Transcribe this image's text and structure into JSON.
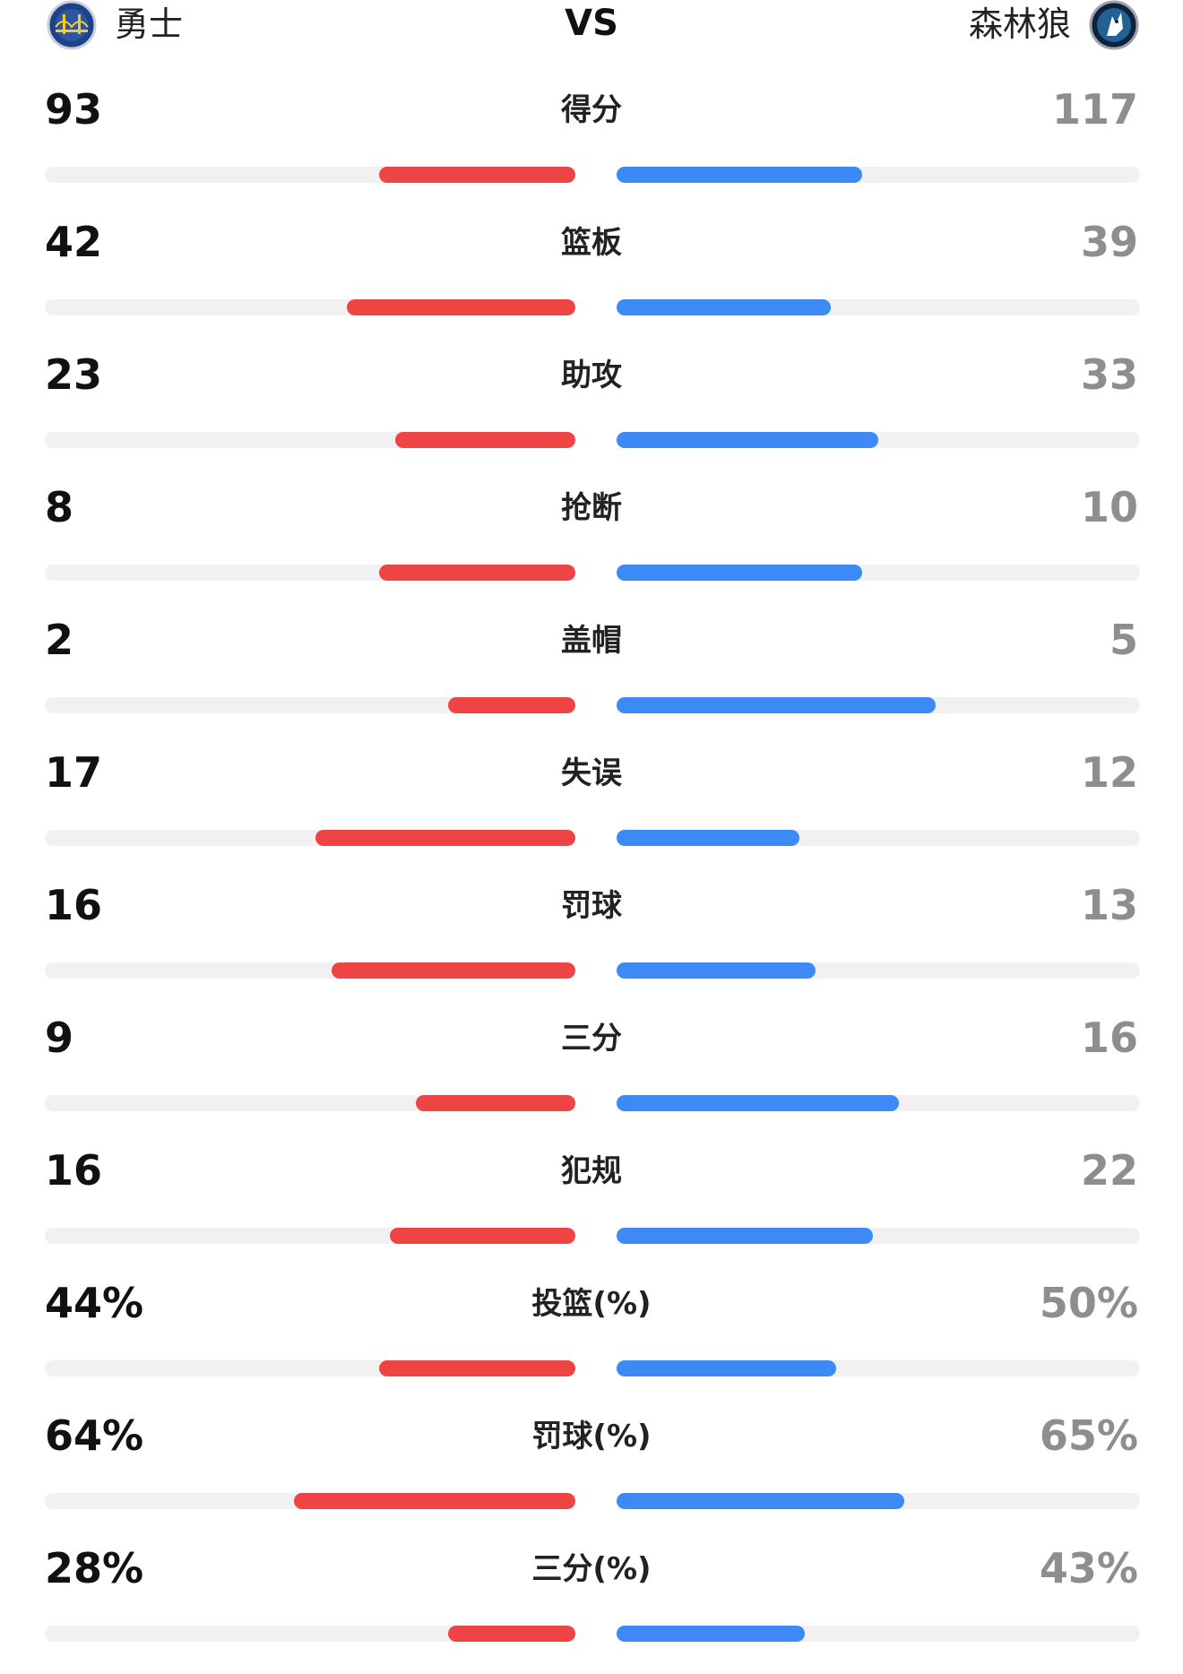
{
  "header": {
    "home_team": "勇士",
    "away_team": "森林狼",
    "vs": "VS",
    "home_logo_icon": "warriors-bridge-logo",
    "away_logo_icon": "timberwolves-logo"
  },
  "colors": {
    "home_bar": "#ef4444",
    "away_bar": "#3d8af7",
    "track": "#f1f1f1",
    "away_value_text": "#8e8e8e"
  },
  "stats": [
    {
      "label": "得分",
      "home": "93",
      "away": "117",
      "home_fill": 0.37,
      "away_fill": 0.47
    },
    {
      "label": "篮板",
      "home": "42",
      "away": "39",
      "home_fill": 0.43,
      "away_fill": 0.41
    },
    {
      "label": "助攻",
      "home": "23",
      "away": "33",
      "home_fill": 0.34,
      "away_fill": 0.5
    },
    {
      "label": "抢断",
      "home": "8",
      "away": "10",
      "home_fill": 0.37,
      "away_fill": 0.47
    },
    {
      "label": "盖帽",
      "home": "2",
      "away": "5",
      "home_fill": 0.24,
      "away_fill": 0.61
    },
    {
      "label": "失误",
      "home": "17",
      "away": "12",
      "home_fill": 0.49,
      "away_fill": 0.35
    },
    {
      "label": "罚球",
      "home": "16",
      "away": "13",
      "home_fill": 0.46,
      "away_fill": 0.38
    },
    {
      "label": "三分",
      "home": "9",
      "away": "16",
      "home_fill": 0.3,
      "away_fill": 0.54
    },
    {
      "label": "犯规",
      "home": "16",
      "away": "22",
      "home_fill": 0.35,
      "away_fill": 0.49
    },
    {
      "label": "投篮(%)",
      "home": "44%",
      "away": "50%",
      "home_fill": 0.37,
      "away_fill": 0.42
    },
    {
      "label": "罚球(%)",
      "home": "64%",
      "away": "65%",
      "home_fill": 0.53,
      "away_fill": 0.55
    },
    {
      "label": "三分(%)",
      "home": "28%",
      "away": "43%",
      "home_fill": 0.24,
      "away_fill": 0.36
    }
  ]
}
